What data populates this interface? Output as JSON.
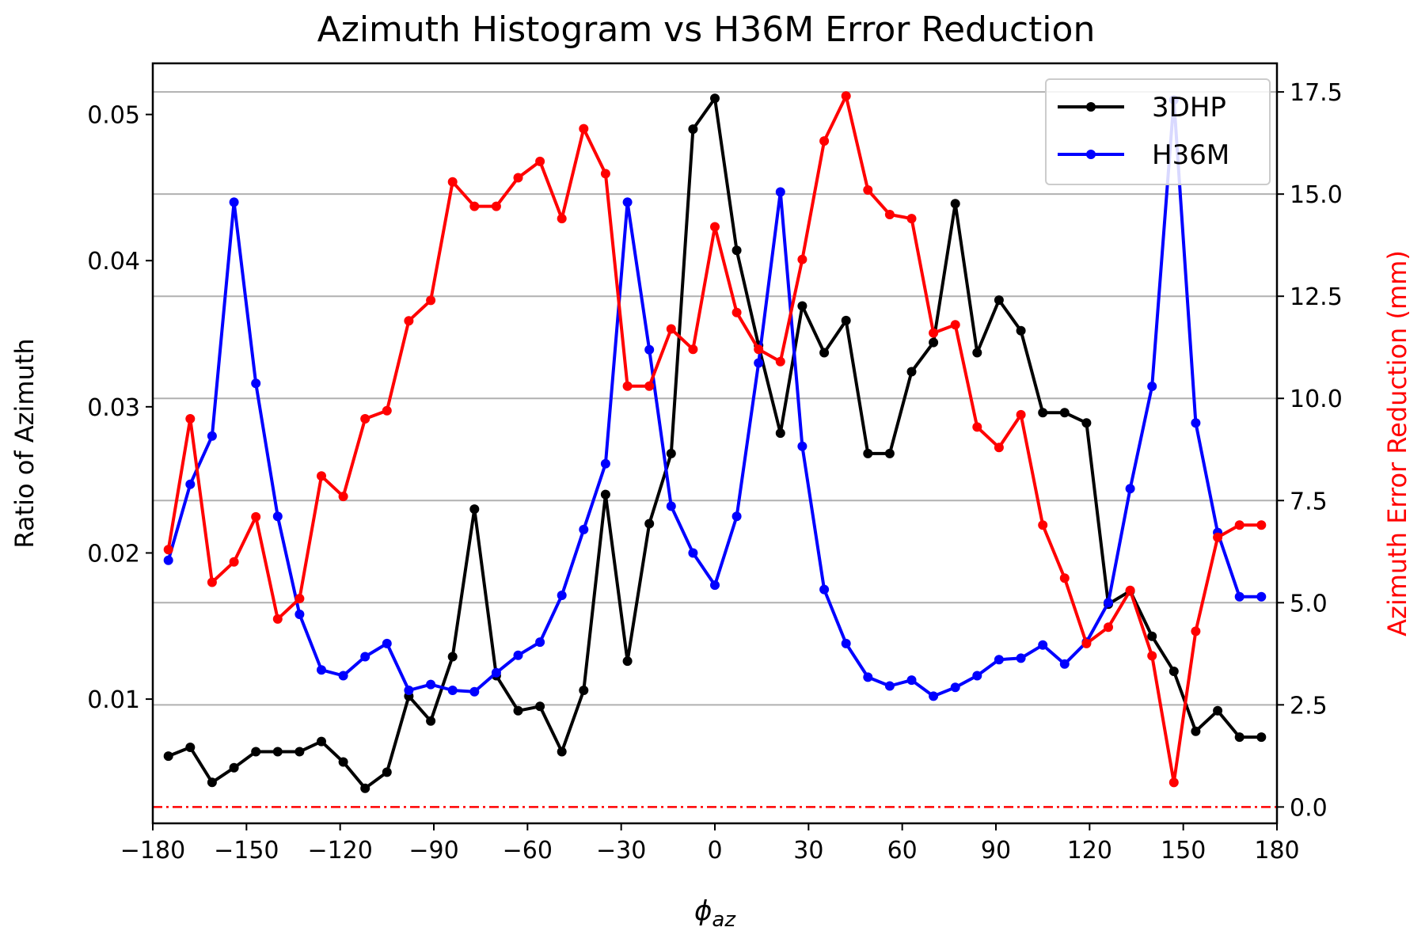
{
  "chart_data": {
    "type": "line",
    "title": "Azimuth Histogram vs H36M Error Reduction",
    "xlabel_base": "ϕ",
    "xlabel_sub": "az",
    "ylabel_left": "Ratio of Azimuth",
    "ylabel_right": "Azimuth Error Reduction (mm)",
    "xlim": [
      -180,
      180
    ],
    "ylim_left": [
      0.0015,
      0.0535
    ],
    "ylim_right": [
      -0.4,
      18.2
    ],
    "x_ticks": [
      -180,
      -150,
      -120,
      -90,
      -60,
      -30,
      0,
      30,
      60,
      90,
      120,
      150,
      180
    ],
    "x_tick_labels": [
      "−180",
      "−150",
      "−120",
      "−90",
      "−60",
      "−30",
      "0",
      "30",
      "60",
      "90",
      "120",
      "150",
      "180"
    ],
    "y_left_ticks": [
      0.01,
      0.02,
      0.03,
      0.04,
      0.05
    ],
    "y_left_tick_labels": [
      "0.01",
      "0.02",
      "0.03",
      "0.04",
      "0.05"
    ],
    "y_right_ticks": [
      0,
      2.5,
      5,
      7.5,
      10,
      12.5,
      15,
      17.5
    ],
    "y_right_tick_labels": [
      "0.0",
      "2.5",
      "5.0",
      "7.5",
      "10.0",
      "12.5",
      "15.0",
      "17.5"
    ],
    "grid": "horizontal lines at right-axis ticks",
    "legend_position": "top-right",
    "x": [
      -175,
      -168,
      -161,
      -154,
      -147,
      -140,
      -133,
      -126,
      -119,
      -112,
      -105,
      -98,
      -91,
      -84,
      -77,
      -70,
      -63,
      -56,
      -49,
      -42,
      -35,
      -28,
      -21,
      -14,
      -7,
      0,
      7,
      14,
      21,
      28,
      35,
      42,
      49,
      56,
      63,
      70,
      77,
      84,
      91,
      98,
      105,
      112,
      119,
      126,
      133,
      140,
      147,
      154,
      161,
      168,
      175
    ],
    "series": [
      {
        "name": "3DHP",
        "axis": "left",
        "color": "#000000",
        "values": [
          0.0061,
          0.0067,
          0.0043,
          0.0053,
          0.0064,
          0.0064,
          0.0064,
          0.0071,
          0.0057,
          0.0039,
          0.005,
          0.0102,
          0.0085,
          0.0129,
          0.023,
          0.0116,
          0.0092,
          0.0095,
          0.0064,
          0.0106,
          0.024,
          0.0126,
          0.022,
          0.0268,
          0.049,
          0.0511,
          0.0407,
          0.0342,
          0.0282,
          0.0369,
          0.0337,
          0.0359,
          0.0268,
          0.0268,
          0.0324,
          0.0344,
          0.0439,
          0.0337,
          0.0373,
          0.0352,
          0.0296,
          0.0296,
          0.0289,
          0.0165,
          0.0174,
          0.0143,
          0.0119,
          0.0078,
          0.0092,
          0.0074,
          0.0074
        ]
      },
      {
        "name": "H36M",
        "axis": "left",
        "color": "#0000ff",
        "values": [
          0.0195,
          0.0247,
          0.028,
          0.044,
          0.0316,
          0.0225,
          0.0158,
          0.012,
          0.0116,
          0.0129,
          0.0138,
          0.0106,
          0.011,
          0.0106,
          0.0105,
          0.0118,
          0.013,
          0.0139,
          0.0171,
          0.0216,
          0.0261,
          0.044,
          0.0339,
          0.0232,
          0.02,
          0.0178,
          0.0225,
          0.033,
          0.0447,
          0.0273,
          0.0175,
          0.0138,
          0.0115,
          0.0109,
          0.0113,
          0.0102,
          0.0108,
          0.0116,
          0.0127,
          0.0128,
          0.0137,
          0.0124,
          0.0139,
          0.0166,
          0.0244,
          0.0314,
          0.051,
          0.0289,
          0.0214,
          0.017,
          0.017
        ]
      },
      {
        "name": "",
        "axis": "right",
        "color": "#ff0000",
        "values": [
          6.3,
          9.5,
          5.5,
          6.0,
          7.1,
          4.6,
          5.1,
          8.1,
          7.6,
          9.5,
          9.7,
          11.9,
          12.4,
          15.3,
          14.7,
          14.7,
          15.4,
          15.8,
          14.4,
          16.6,
          15.5,
          10.3,
          10.3,
          11.7,
          11.2,
          14.2,
          12.1,
          11.2,
          10.9,
          13.4,
          16.3,
          17.4,
          15.1,
          14.5,
          14.4,
          11.6,
          11.8,
          9.3,
          8.8,
          9.6,
          6.9,
          5.6,
          4.0,
          4.4,
          5.3,
          3.7,
          0.6,
          4.3,
          6.6,
          6.9,
          6.9
        ]
      }
    ],
    "reference_line": {
      "axis": "right",
      "y": 0,
      "style": "dash-dot",
      "color": "#ff0000"
    }
  }
}
